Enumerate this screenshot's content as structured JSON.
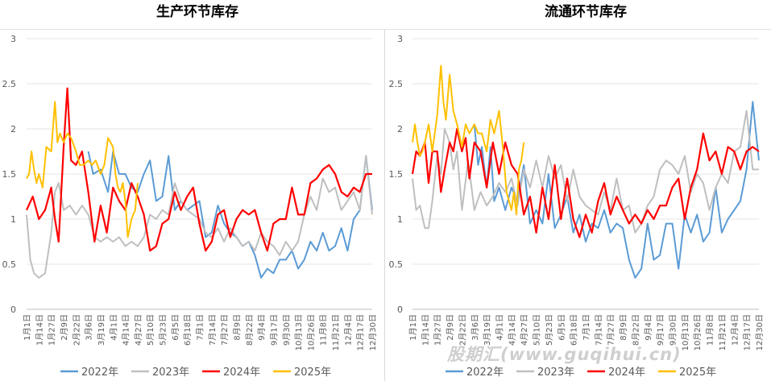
{
  "watermark": "股期汇(www.guqihui.cn)",
  "series_meta": [
    {
      "name": "2022年",
      "color": "#5b9bd5"
    },
    {
      "name": "2023年",
      "color": "#bfbfbf"
    },
    {
      "name": "2024年",
      "color": "#ff0000"
    },
    {
      "name": "2025年",
      "color": "#ffc000"
    }
  ],
  "x_ticks": [
    "1月1日",
    "1月14日",
    "1月27日",
    "2月9日",
    "2月22日",
    "3月6日",
    "3月19日",
    "4月1日",
    "4月14日",
    "4月27日",
    "5月10日",
    "5月23日",
    "6月5日",
    "6月18日",
    "7月1日",
    "7月14日",
    "7月27日",
    "8月9日",
    "8月22日",
    "9月4日",
    "9月17日",
    "9月30日",
    "10月13日",
    "10月26日",
    "11月8日",
    "11月21日",
    "12月4日",
    "12月17日",
    "12月30日"
  ],
  "chart_data": [
    {
      "type": "line",
      "title": "生产环节库存",
      "xlabel": "",
      "ylabel": "",
      "ylim": [
        0,
        3
      ],
      "yticks": [
        "0",
        "0.5",
        "1",
        "1.5",
        "2",
        "2.5",
        "3"
      ],
      "grid": true,
      "legend": "bottom",
      "x_unit": "tick index (1月1日 … 12月30日)",
      "series": [
        {
          "name": "2022年",
          "x": [
            5,
            5.4,
            6,
            6.6,
            7,
            7.5,
            8,
            8.5,
            9,
            9.5,
            10,
            10.5,
            11,
            11.5,
            12,
            12.5,
            13,
            13.5,
            14,
            14.5,
            15,
            15.5,
            16,
            16.5,
            17,
            17.5,
            18,
            18.5,
            19,
            19.5,
            20,
            20.5,
            21,
            21.5,
            22,
            22.5,
            23,
            23.5,
            24,
            24.5,
            25,
            25.5,
            26,
            26.5,
            27,
            27.5,
            28
          ],
          "values": [
            1.75,
            1.5,
            1.55,
            1.3,
            1.75,
            1.5,
            1.5,
            1.35,
            1.3,
            1.5,
            1.65,
            1.2,
            1.25,
            1.7,
            1.1,
            1.2,
            1.1,
            1.15,
            1.2,
            0.8,
            0.85,
            1.15,
            0.95,
            0.85,
            0.8,
            0.7,
            0.75,
            0.6,
            0.35,
            0.45,
            0.4,
            0.55,
            0.55,
            0.65,
            0.45,
            0.55,
            0.75,
            0.65,
            0.85,
            0.65,
            0.7,
            0.9,
            0.65,
            1.0,
            1.1,
            1.7,
            1.1
          ]
        },
        {
          "name": "2023年",
          "x": [
            0,
            0.3,
            0.6,
            1,
            1.5,
            2,
            2.3,
            2.6,
            3,
            3.5,
            4,
            4.5,
            5,
            5.5,
            6,
            6.5,
            7,
            7.5,
            8,
            8.5,
            9,
            9.5,
            10,
            10.5,
            11,
            11.5,
            12,
            12.5,
            13,
            13.5,
            14,
            14.5,
            15,
            15.5,
            16,
            16.5,
            17,
            17.5,
            18,
            18.5,
            19,
            19.5,
            20,
            20.5,
            21,
            21.5,
            22,
            22.5,
            23,
            23.5,
            24,
            24.5,
            25,
            25.5,
            26,
            26.5,
            27,
            27.5,
            28
          ],
          "values": [
            1.05,
            0.55,
            0.4,
            0.35,
            0.4,
            0.85,
            1.3,
            1.4,
            1.1,
            1.15,
            1.05,
            1.15,
            1.05,
            0.8,
            0.75,
            0.8,
            0.75,
            0.8,
            0.7,
            0.75,
            0.7,
            0.8,
            1.05,
            1.0,
            1.1,
            1.05,
            1.4,
            1.2,
            1.1,
            1.05,
            1.0,
            0.85,
            0.8,
            0.9,
            0.75,
            0.9,
            0.8,
            0.7,
            0.75,
            0.65,
            0.85,
            0.75,
            0.7,
            0.6,
            0.75,
            0.65,
            0.75,
            1.05,
            1.25,
            1.1,
            1.45,
            1.3,
            1.35,
            1.1,
            1.2,
            1.3,
            1.1,
            1.7,
            1.05
          ]
        },
        {
          "name": "2024年",
          "x": [
            0,
            0.5,
            1,
            1.5,
            2,
            2.3,
            2.6,
            3,
            3.3,
            3.6,
            4,
            4.5,
            5,
            5.5,
            6,
            6.5,
            7,
            7.5,
            8,
            8.5,
            9,
            9.5,
            10,
            10.5,
            11,
            11.5,
            12,
            12.5,
            13,
            13.5,
            14,
            14.5,
            15,
            15.5,
            16,
            16.5,
            17,
            17.5,
            18,
            18.5,
            19,
            19.5,
            20,
            20.5,
            21,
            21.5,
            22,
            22.5,
            23,
            23.5,
            24,
            24.5,
            25,
            25.5,
            26,
            26.5,
            27,
            27.5,
            28
          ],
          "values": [
            1.1,
            1.25,
            1.0,
            1.1,
            1.35,
            1.0,
            0.75,
            1.8,
            2.45,
            1.65,
            1.6,
            1.75,
            1.3,
            0.75,
            1.15,
            0.85,
            1.35,
            1.2,
            1.1,
            1.4,
            1.25,
            1.05,
            0.65,
            0.7,
            0.95,
            1.0,
            1.3,
            1.1,
            1.25,
            1.35,
            0.95,
            0.65,
            0.75,
            1.05,
            1.1,
            0.8,
            1.0,
            1.1,
            1.05,
            1.1,
            0.85,
            0.65,
            0.95,
            1.0,
            1.0,
            1.35,
            1.05,
            1.05,
            1.4,
            1.45,
            1.55,
            1.6,
            1.5,
            1.3,
            1.25,
            1.35,
            1.3,
            1.5,
            1.5
          ]
        },
        {
          "name": "2025年",
          "x": [
            0,
            0.2,
            0.4,
            0.6,
            0.8,
            1,
            1.3,
            1.6,
            2,
            2.3,
            2.5,
            2.7,
            3,
            3.3,
            3.6,
            4,
            4.3,
            4.6,
            5,
            5.3,
            5.6,
            6,
            6.3,
            6.6,
            7,
            7.2,
            7.4,
            7.6,
            7.8,
            8,
            8.2,
            8.5,
            8.8,
            9
          ],
          "values": [
            1.45,
            1.5,
            1.75,
            1.55,
            1.4,
            1.5,
            1.35,
            1.8,
            1.75,
            2.3,
            1.85,
            1.95,
            1.85,
            1.95,
            1.9,
            1.75,
            1.6,
            1.6,
            1.65,
            1.6,
            1.65,
            1.5,
            1.6,
            1.9,
            1.8,
            1.5,
            1.35,
            1.3,
            1.4,
            1.2,
            0.8,
            1.0,
            1.1,
            1.4
          ]
        }
      ]
    },
    {
      "type": "line",
      "title": "流通环节库存",
      "xlabel": "",
      "ylabel": "",
      "ylim": [
        0,
        3
      ],
      "yticks": [
        "0",
        "0.5",
        "1",
        "1.5",
        "2",
        "2.5",
        "3"
      ],
      "grid": true,
      "legend": "bottom",
      "x_unit": "tick index (1月1日 … 12月30日)",
      "series": [
        {
          "name": "2022年",
          "x": [
            5,
            5.3,
            5.6,
            6,
            6.3,
            6.6,
            7,
            7.5,
            8,
            8.5,
            9,
            9.5,
            10,
            10.5,
            11,
            11.5,
            12,
            12.5,
            13,
            13.5,
            14,
            14.5,
            15,
            15.5,
            16,
            16.5,
            17,
            17.5,
            18,
            18.5,
            19,
            19.5,
            20,
            20.5,
            21,
            21.5,
            22,
            22.5,
            23,
            23.5,
            24,
            24.5,
            25,
            25.5,
            26,
            26.5,
            27,
            27.5,
            28
          ],
          "values": [
            2.05,
            1.6,
            1.8,
            1.35,
            1.8,
            1.2,
            1.35,
            1.1,
            1.35,
            1.2,
            1.6,
            0.95,
            1.1,
            0.95,
            1.5,
            0.9,
            1.05,
            1.25,
            0.85,
            1.05,
            0.75,
            0.95,
            0.9,
            1.1,
            0.85,
            0.95,
            0.9,
            0.55,
            0.35,
            0.45,
            0.95,
            0.55,
            0.6,
            0.95,
            0.95,
            0.45,
            1.05,
            0.85,
            1.05,
            0.75,
            0.85,
            1.35,
            0.85,
            1.0,
            1.1,
            1.2,
            1.55,
            2.3,
            1.65
          ]
        },
        {
          "name": "2023年",
          "x": [
            0,
            0.3,
            0.6,
            1,
            1.3,
            1.6,
            2,
            2.3,
            2.6,
            3,
            3.3,
            3.6,
            4,
            4.5,
            5,
            5.5,
            6,
            6.5,
            7,
            7.5,
            8,
            8.5,
            9,
            9.5,
            10,
            10.5,
            11,
            11.5,
            12,
            12.5,
            13,
            13.5,
            14,
            14.5,
            15,
            15.5,
            16,
            16.5,
            17,
            17.5,
            18,
            18.5,
            19,
            19.5,
            20,
            20.5,
            21,
            21.5,
            22,
            22.5,
            23,
            23.5,
            24,
            24.5,
            25,
            25.5,
            26,
            26.5,
            27,
            27.5,
            28
          ],
          "values": [
            1.45,
            1.1,
            1.15,
            0.9,
            0.9,
            1.2,
            1.7,
            1.5,
            2.0,
            1.85,
            1.55,
            1.75,
            1.1,
            1.65,
            1.1,
            1.3,
            1.15,
            1.25,
            1.4,
            1.3,
            1.45,
            1.15,
            1.55,
            1.35,
            1.65,
            1.35,
            1.7,
            1.45,
            1.6,
            1.2,
            1.55,
            1.25,
            1.15,
            1.1,
            1.05,
            1.3,
            1.1,
            1.45,
            1.1,
            1.15,
            0.85,
            0.95,
            1.15,
            1.25,
            1.55,
            1.65,
            1.6,
            1.5,
            1.7,
            1.3,
            1.5,
            1.4,
            1.1,
            1.35,
            1.5,
            1.4,
            1.75,
            1.8,
            2.2,
            1.55,
            1.55
          ]
        },
        {
          "name": "2024年",
          "x": [
            0,
            0.3,
            0.6,
            1,
            1.3,
            1.6,
            2,
            2.3,
            2.6,
            3,
            3.3,
            3.6,
            4,
            4.3,
            4.6,
            5,
            5.5,
            6,
            6.5,
            7,
            7.5,
            8,
            8.5,
            9,
            9.5,
            10,
            10.5,
            11,
            11.5,
            12,
            12.5,
            13,
            13.5,
            14,
            14.5,
            15,
            15.5,
            16,
            16.5,
            17,
            17.5,
            18,
            18.5,
            19,
            19.5,
            20,
            20.5,
            21,
            21.5,
            22,
            22.5,
            23,
            23.5,
            24,
            24.5,
            25,
            25.5,
            26,
            26.5,
            27,
            27.5,
            28
          ],
          "values": [
            1.5,
            1.75,
            1.7,
            1.85,
            1.4,
            1.75,
            1.75,
            1.3,
            1.55,
            1.85,
            1.75,
            2.0,
            1.75,
            1.9,
            1.45,
            1.85,
            1.75,
            1.35,
            1.85,
            1.5,
            1.85,
            1.6,
            1.5,
            1.05,
            1.25,
            0.85,
            1.35,
            1.0,
            1.6,
            1.0,
            1.45,
            1.0,
            0.8,
            1.05,
            0.85,
            1.2,
            1.4,
            1.05,
            1.25,
            1.1,
            0.95,
            1.05,
            0.95,
            1.1,
            1.0,
            1.15,
            1.15,
            1.35,
            1.45,
            1.0,
            1.35,
            1.55,
            1.95,
            1.65,
            1.75,
            1.5,
            1.8,
            1.75,
            1.55,
            1.75,
            1.8,
            1.75
          ]
        },
        {
          "name": "2025年",
          "x": [
            0,
            0.2,
            0.4,
            0.6,
            0.8,
            1,
            1.3,
            1.6,
            2,
            2.3,
            2.5,
            2.7,
            3,
            3.3,
            3.6,
            4,
            4.3,
            4.6,
            5,
            5.3,
            5.6,
            6,
            6.3,
            6.6,
            7,
            7.3,
            7.6,
            8,
            8.2,
            8.4,
            8.6,
            8.8,
            9
          ],
          "values": [
            1.85,
            2.05,
            1.85,
            1.7,
            1.75,
            1.85,
            2.05,
            1.75,
            2.15,
            2.7,
            2.3,
            2.1,
            2.6,
            2.2,
            2.05,
            1.8,
            2.05,
            1.95,
            2.05,
            1.95,
            1.95,
            1.75,
            2.1,
            1.95,
            2.2,
            1.8,
            1.3,
            1.1,
            1.3,
            1.05,
            1.55,
            1.65,
            1.85
          ]
        }
      ]
    }
  ]
}
